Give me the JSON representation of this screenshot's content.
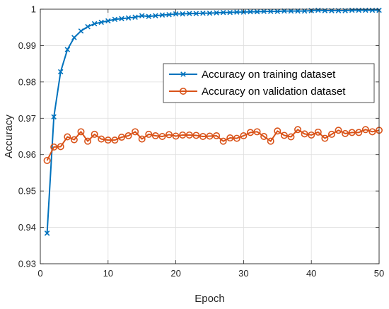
{
  "chart_data": {
    "type": "line",
    "xlabel": "Epoch",
    "ylabel": "Accuracy",
    "xlim": [
      0,
      50
    ],
    "ylim": [
      0.93,
      1.0
    ],
    "xticks": [
      0,
      10,
      20,
      30,
      40,
      50
    ],
    "yticks": [
      0.93,
      0.94,
      0.95,
      0.96,
      0.97,
      0.98,
      0.99,
      1.0
    ],
    "xtick_labels": [
      "0",
      "10",
      "20",
      "30",
      "40",
      "50"
    ],
    "ytick_labels": [
      "0.93",
      "0.94",
      "0.95",
      "0.96",
      "0.97",
      "0.98",
      "0.99",
      "1"
    ],
    "grid": true,
    "legend_position": "upper-right-center",
    "x": [
      1,
      2,
      3,
      4,
      5,
      6,
      7,
      8,
      9,
      10,
      11,
      12,
      13,
      14,
      15,
      16,
      17,
      18,
      19,
      20,
      21,
      22,
      23,
      24,
      25,
      26,
      27,
      28,
      29,
      30,
      31,
      32,
      33,
      34,
      35,
      36,
      37,
      38,
      39,
      40,
      41,
      42,
      43,
      44,
      45,
      46,
      47,
      48,
      49,
      50
    ],
    "series": [
      {
        "name": "Accuracy on training dataset",
        "color": "#0072BD",
        "marker": "x",
        "values": [
          0.9384,
          0.9704,
          0.9828,
          0.9889,
          0.9922,
          0.994,
          0.9952,
          0.996,
          0.9964,
          0.9968,
          0.9972,
          0.9974,
          0.9976,
          0.9978,
          0.9982,
          0.998,
          0.9982,
          0.9984,
          0.9985,
          0.9987,
          0.9987,
          0.9988,
          0.9988,
          0.9989,
          0.9989,
          0.999,
          0.9991,
          0.9991,
          0.9992,
          0.9992,
          0.9993,
          0.9993,
          0.9994,
          0.9994,
          0.9994,
          0.9995,
          0.9995,
          0.9995,
          0.9995,
          0.9996,
          0.9997,
          0.9996,
          0.9996,
          0.9996,
          0.9996,
          0.9997,
          0.9997,
          0.9997,
          0.9997,
          0.9997
        ]
      },
      {
        "name": "Accuracy on validation dataset",
        "color": "#D95319",
        "marker": "o",
        "values": [
          0.9584,
          0.9621,
          0.9622,
          0.9649,
          0.9641,
          0.9663,
          0.9637,
          0.9656,
          0.9643,
          0.964,
          0.964,
          0.9648,
          0.9652,
          0.9663,
          0.9643,
          0.9656,
          0.9652,
          0.965,
          0.9655,
          0.9651,
          0.9654,
          0.9654,
          0.9653,
          0.965,
          0.9651,
          0.9652,
          0.9637,
          0.9646,
          0.9645,
          0.9652,
          0.9661,
          0.9663,
          0.965,
          0.9637,
          0.9665,
          0.9653,
          0.9649,
          0.9669,
          0.9657,
          0.9654,
          0.9662,
          0.9645,
          0.9656,
          0.9667,
          0.9658,
          0.9661,
          0.9661,
          0.9669,
          0.9663,
          0.9667
        ]
      }
    ]
  }
}
